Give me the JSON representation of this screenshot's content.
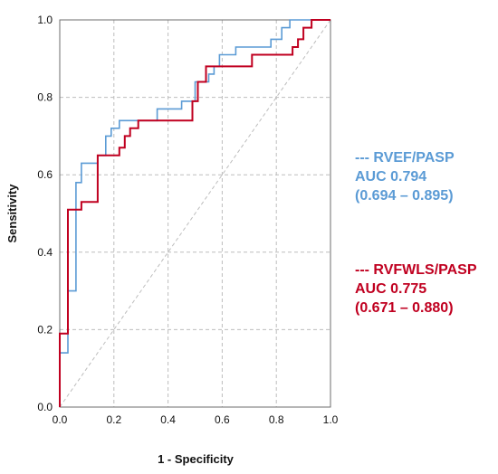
{
  "colors": {
    "series1": "#5B9BD5",
    "series2": "#C00020",
    "grid": "#BDBDBD",
    "frame": "#6E6E6E"
  },
  "legend": [
    {
      "name": "--- RVEF/PASP",
      "auc": "AUC 0.794",
      "ci": "(0.694 – 0.895)",
      "color": "#5B9BD5"
    },
    {
      "name": "--- RVFWLS/PASP",
      "auc": "AUC 0.775",
      "ci": "(0.671 – 0.880)",
      "color": "#C00020"
    }
  ],
  "chart_data": {
    "type": "line",
    "xlabel": "1 - Specificity",
    "ylabel": "Sensitivity",
    "xlim": [
      0,
      1
    ],
    "ylim": [
      0,
      1
    ],
    "grid": true,
    "legend_placement": "right",
    "xticks": [
      "0.0",
      "0.2",
      "0.4",
      "0.6",
      "0.8",
      "1.0"
    ],
    "yticks": [
      "0.0",
      "0.2",
      "0.4",
      "0.6",
      "0.8",
      "1.0"
    ],
    "series": [
      {
        "name": "RVEF/PASP",
        "color": "#5B9BD5",
        "points": [
          [
            0,
            0
          ],
          [
            0,
            0.14
          ],
          [
            0.03,
            0.14
          ],
          [
            0.03,
            0.3
          ],
          [
            0.06,
            0.3
          ],
          [
            0.06,
            0.58
          ],
          [
            0.08,
            0.58
          ],
          [
            0.08,
            0.63
          ],
          [
            0.14,
            0.63
          ],
          [
            0.14,
            0.65
          ],
          [
            0.17,
            0.65
          ],
          [
            0.17,
            0.7
          ],
          [
            0.19,
            0.7
          ],
          [
            0.19,
            0.72
          ],
          [
            0.22,
            0.72
          ],
          [
            0.22,
            0.74
          ],
          [
            0.36,
            0.74
          ],
          [
            0.36,
            0.77
          ],
          [
            0.45,
            0.77
          ],
          [
            0.45,
            0.79
          ],
          [
            0.5,
            0.79
          ],
          [
            0.5,
            0.84
          ],
          [
            0.55,
            0.84
          ],
          [
            0.55,
            0.86
          ],
          [
            0.57,
            0.86
          ],
          [
            0.57,
            0.88
          ],
          [
            0.59,
            0.88
          ],
          [
            0.59,
            0.91
          ],
          [
            0.65,
            0.91
          ],
          [
            0.65,
            0.93
          ],
          [
            0.78,
            0.93
          ],
          [
            0.78,
            0.95
          ],
          [
            0.82,
            0.95
          ],
          [
            0.82,
            0.98
          ],
          [
            0.85,
            0.98
          ],
          [
            0.85,
            1.0
          ],
          [
            1.0,
            1.0
          ]
        ]
      },
      {
        "name": "RVFWLS/PASP",
        "color": "#C00020",
        "points": [
          [
            0,
            0
          ],
          [
            0,
            0.19
          ],
          [
            0.03,
            0.19
          ],
          [
            0.03,
            0.51
          ],
          [
            0.08,
            0.51
          ],
          [
            0.08,
            0.53
          ],
          [
            0.14,
            0.53
          ],
          [
            0.14,
            0.65
          ],
          [
            0.22,
            0.65
          ],
          [
            0.22,
            0.67
          ],
          [
            0.24,
            0.67
          ],
          [
            0.24,
            0.7
          ],
          [
            0.26,
            0.7
          ],
          [
            0.26,
            0.72
          ],
          [
            0.29,
            0.72
          ],
          [
            0.29,
            0.74
          ],
          [
            0.49,
            0.74
          ],
          [
            0.49,
            0.79
          ],
          [
            0.51,
            0.79
          ],
          [
            0.51,
            0.84
          ],
          [
            0.54,
            0.84
          ],
          [
            0.54,
            0.88
          ],
          [
            0.71,
            0.88
          ],
          [
            0.71,
            0.91
          ],
          [
            0.86,
            0.91
          ],
          [
            0.86,
            0.93
          ],
          [
            0.88,
            0.93
          ],
          [
            0.88,
            0.95
          ],
          [
            0.9,
            0.95
          ],
          [
            0.9,
            0.98
          ],
          [
            0.93,
            0.98
          ],
          [
            0.93,
            1.0
          ],
          [
            1.0,
            1.0
          ]
        ]
      }
    ]
  }
}
